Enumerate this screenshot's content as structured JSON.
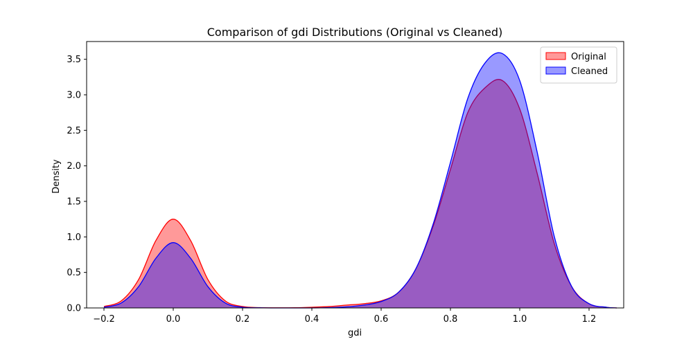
{
  "chart_data": {
    "type": "area",
    "title": "Comparison of gdi Distributions (Original vs Cleaned)",
    "xlabel": "gdi",
    "ylabel": "Density",
    "xlim": [
      -0.25,
      1.3
    ],
    "ylim": [
      0,
      3.75
    ],
    "xticks": [
      -0.2,
      0.0,
      0.2,
      0.4,
      0.6,
      0.8,
      1.0,
      1.2
    ],
    "xtick_labels": [
      "−0.2",
      "0.0",
      "0.2",
      "0.4",
      "0.6",
      "0.8",
      "1.0",
      "1.2"
    ],
    "yticks": [
      0.0,
      0.5,
      1.0,
      1.5,
      2.0,
      2.5,
      3.0,
      3.5
    ],
    "ytick_labels": [
      "0.0",
      "0.5",
      "1.0",
      "1.5",
      "2.0",
      "2.5",
      "3.0",
      "3.5"
    ],
    "grid": false,
    "legend_position": "top-right",
    "series": [
      {
        "name": "Original",
        "color": "#ff0000",
        "fill_alpha": 0.4,
        "x": [
          -0.2,
          -0.15,
          -0.1,
          -0.05,
          0.0,
          0.05,
          0.1,
          0.15,
          0.2,
          0.25,
          0.3,
          0.35,
          0.4,
          0.45,
          0.5,
          0.55,
          0.6,
          0.65,
          0.7,
          0.75,
          0.8,
          0.85,
          0.9,
          0.95,
          1.0,
          1.05,
          1.1,
          1.15,
          1.2,
          1.25,
          1.28
        ],
        "values": [
          0.02,
          0.1,
          0.4,
          0.95,
          1.25,
          0.95,
          0.4,
          0.1,
          0.02,
          0.005,
          0.002,
          0.003,
          0.01,
          0.02,
          0.04,
          0.06,
          0.1,
          0.22,
          0.55,
          1.15,
          1.95,
          2.75,
          3.1,
          3.2,
          2.8,
          1.9,
          0.9,
          0.3,
          0.06,
          0.01,
          0.0
        ]
      },
      {
        "name": "Cleaned",
        "color": "#0000ff",
        "fill_alpha": 0.4,
        "x": [
          -0.2,
          -0.15,
          -0.1,
          -0.05,
          0.0,
          0.05,
          0.1,
          0.15,
          0.2,
          0.25,
          0.3,
          0.35,
          0.4,
          0.45,
          0.5,
          0.55,
          0.6,
          0.65,
          0.7,
          0.75,
          0.8,
          0.85,
          0.9,
          0.95,
          1.0,
          1.05,
          1.1,
          1.15,
          1.2,
          1.25,
          1.28
        ],
        "values": [
          0.01,
          0.07,
          0.3,
          0.7,
          0.92,
          0.7,
          0.3,
          0.07,
          0.01,
          0.002,
          0.0,
          0.0,
          0.0,
          0.005,
          0.015,
          0.04,
          0.09,
          0.22,
          0.55,
          1.18,
          2.05,
          2.95,
          3.45,
          3.58,
          3.2,
          2.2,
          1.0,
          0.3,
          0.06,
          0.01,
          0.0
        ]
      }
    ]
  }
}
